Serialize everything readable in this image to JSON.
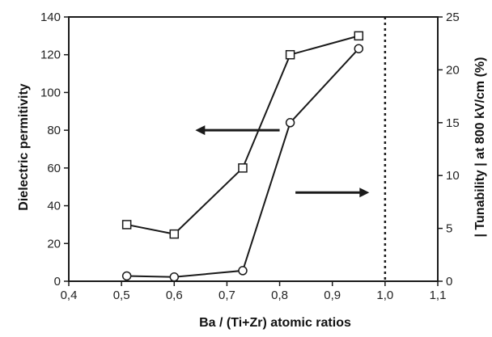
{
  "chart_data": {
    "type": "line",
    "xlabel": "Ba / (Ti+Zr)  atomic ratios",
    "ylabel_left": "Dielectric permitivity",
    "ylabel_right": "| Tunability | at 800 kV/cm (%)",
    "xlim": [
      0.4,
      1.1
    ],
    "ylim_left": [
      0,
      140
    ],
    "ylim_right": [
      0,
      25
    ],
    "x_ticks": [
      "0,4",
      "0,5",
      "0,6",
      "0,7",
      "0,8",
      "0,9",
      "1,0",
      "1,1"
    ],
    "y_ticks_left": [
      "0",
      "20",
      "40",
      "60",
      "80",
      "100",
      "120",
      "140"
    ],
    "y_ticks_right": [
      "0",
      "5",
      "10",
      "15",
      "20",
      "25"
    ],
    "grid": false,
    "legend": "none",
    "series": [
      {
        "axis": "left",
        "marker": "square",
        "x": [
          0.51,
          0.6,
          0.73,
          0.82,
          0.95
        ],
        "values": [
          30,
          25,
          60,
          120,
          130
        ]
      },
      {
        "axis": "right",
        "marker": "circle",
        "x": [
          0.51,
          0.6,
          0.73,
          0.82,
          0.95
        ],
        "values": [
          0.5,
          0.4,
          1.0,
          15.0,
          22.0
        ]
      }
    ],
    "reference_line": {
      "x": 1.0,
      "style": "dotted"
    },
    "annotations": [
      {
        "type": "arrow",
        "direction": "left",
        "points_to": "left-axis",
        "x_from": 0.8,
        "x_to": 0.64,
        "y_left": 80
      },
      {
        "type": "arrow",
        "direction": "right",
        "points_to": "right-axis",
        "x_from": 0.83,
        "x_to": 0.97,
        "y_left": 47
      }
    ],
    "colors": {
      "line": "#1a1a1a",
      "marker_fill": "#ffffff"
    }
  }
}
